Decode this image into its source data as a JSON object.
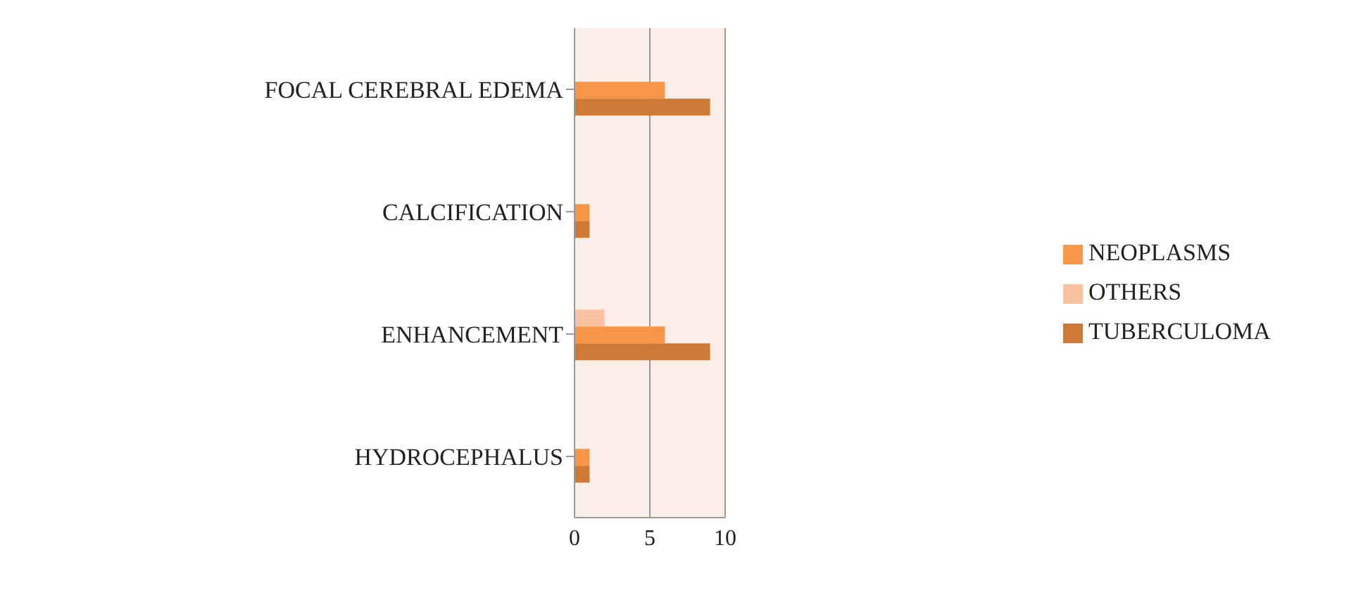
{
  "chart_data": {
    "type": "bar",
    "orientation": "horizontal",
    "categories": [
      "FOCAL CEREBRAL EDEMA",
      "CALCIFICATION",
      "ENHANCEMENT",
      "HYDROCEPHALUS"
    ],
    "series": [
      {
        "name": "OTHERS",
        "color": "#f9c3a3",
        "values": [
          0,
          0,
          2,
          0
        ]
      },
      {
        "name": "NEOPLASMS",
        "color": "#f79646",
        "values": [
          6,
          1,
          6,
          1
        ]
      },
      {
        "name": "TUBERCULOMA",
        "color": "#cf7937",
        "values": [
          9,
          1,
          9,
          1
        ]
      }
    ],
    "xlim": [
      0,
      10
    ],
    "xticks": [
      0,
      5,
      10
    ],
    "grid": "x",
    "legend": "right"
  }
}
